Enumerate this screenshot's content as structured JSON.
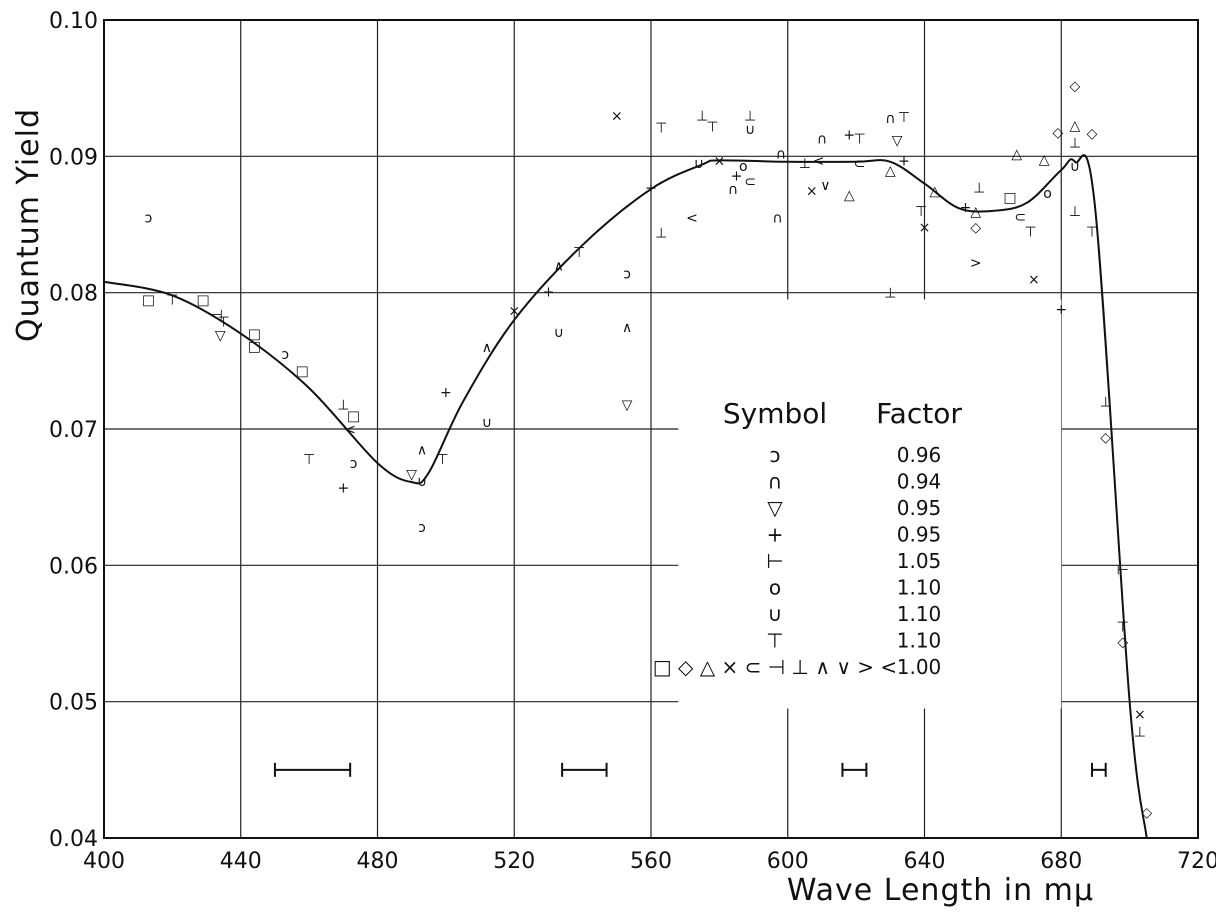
{
  "chart_data": {
    "type": "scatter",
    "xlabel": "Wave Length in mμ",
    "ylabel": "Quantum Yield",
    "xlim": [
      400,
      720
    ],
    "ylim": [
      0.04,
      0.1
    ],
    "xticks": [
      400,
      440,
      480,
      520,
      560,
      600,
      640,
      680,
      720
    ],
    "xtick_labels": [
      "400",
      "440",
      "480",
      "520",
      "560",
      "600",
      "640",
      "680",
      "720"
    ],
    "yticks": [
      0.04,
      0.05,
      0.06,
      0.07,
      0.08,
      0.09,
      0.1
    ],
    "ytick_labels": [
      "0.04",
      "0.05",
      "0.06",
      "0.07",
      "0.08",
      "0.09",
      "0.10"
    ],
    "grid": true,
    "legend": {
      "position": "center-right",
      "header_symbol": "Symbol",
      "header_factor": "Factor",
      "entries": [
        {
          "symbols": "ɔ",
          "factor": "0.96"
        },
        {
          "symbols": "∩",
          "factor": "0.94"
        },
        {
          "symbols": "▽",
          "factor": "0.95"
        },
        {
          "symbols": "+",
          "factor": "0.95"
        },
        {
          "symbols": "⊢",
          "factor": "1.05"
        },
        {
          "symbols": "o",
          "factor": "1.10"
        },
        {
          "symbols": "∪",
          "factor": "1.10"
        },
        {
          "symbols": "⊤",
          "factor": "1.10"
        },
        {
          "symbols": "□ ◇ △ × ⊂ ⊣ ⊥ ∧ ∨ > <",
          "factor": "1.00"
        }
      ]
    },
    "curve": {
      "x": [
        400,
        420,
        440,
        460,
        480,
        490,
        495,
        505,
        520,
        540,
        560,
        575,
        580,
        600,
        620,
        630,
        640,
        650,
        660,
        670,
        680,
        684,
        690,
        700,
        705
      ],
      "y": [
        0.0808,
        0.0798,
        0.077,
        0.073,
        0.0675,
        0.0661,
        0.0668,
        0.072,
        0.078,
        0.0835,
        0.0876,
        0.0894,
        0.0897,
        0.0896,
        0.0896,
        0.0896,
        0.088,
        0.0862,
        0.086,
        0.0866,
        0.089,
        0.0896,
        0.086,
        0.05,
        0.04
      ]
    },
    "points": [
      {
        "x": 413,
        "y": 0.0855,
        "s": "ɔ"
      },
      {
        "x": 413,
        "y": 0.0795,
        "s": "□"
      },
      {
        "x": 420,
        "y": 0.0795,
        "s": "⊤"
      },
      {
        "x": 429,
        "y": 0.0795,
        "s": "□"
      },
      {
        "x": 433,
        "y": 0.0784,
        "s": "⊣"
      },
      {
        "x": 435,
        "y": 0.0779,
        "s": "⊤"
      },
      {
        "x": 434,
        "y": 0.0769,
        "s": "▽"
      },
      {
        "x": 444,
        "y": 0.077,
        "s": "□"
      },
      {
        "x": 444,
        "y": 0.0761,
        "s": "□"
      },
      {
        "x": 453,
        "y": 0.0755,
        "s": "ɔ"
      },
      {
        "x": 458,
        "y": 0.0743,
        "s": "□"
      },
      {
        "x": 460,
        "y": 0.0678,
        "s": "⊤"
      },
      {
        "x": 470,
        "y": 0.0718,
        "s": "⊥"
      },
      {
        "x": 472,
        "y": 0.07,
        "s": "<"
      },
      {
        "x": 473,
        "y": 0.071,
        "s": "□"
      },
      {
        "x": 473,
        "y": 0.0675,
        "s": "ɔ"
      },
      {
        "x": 470,
        "y": 0.0657,
        "s": "+"
      },
      {
        "x": 490,
        "y": 0.0667,
        "s": "▽"
      },
      {
        "x": 493,
        "y": 0.0685,
        "s": "∧"
      },
      {
        "x": 493,
        "y": 0.0662,
        "s": "∪"
      },
      {
        "x": 493,
        "y": 0.0628,
        "s": "ɔ"
      },
      {
        "x": 499,
        "y": 0.0678,
        "s": "⊤"
      },
      {
        "x": 500,
        "y": 0.0727,
        "s": "+"
      },
      {
        "x": 512,
        "y": 0.0705,
        "s": "∪"
      },
      {
        "x": 512,
        "y": 0.076,
        "s": "∧"
      },
      {
        "x": 520,
        "y": 0.0787,
        "s": "×"
      },
      {
        "x": 530,
        "y": 0.0801,
        "s": "+"
      },
      {
        "x": 533,
        "y": 0.082,
        "s": "∧"
      },
      {
        "x": 533,
        "y": 0.0771,
        "s": "∪"
      },
      {
        "x": 539,
        "y": 0.083,
        "s": "⊤"
      },
      {
        "x": 550,
        "y": 0.093,
        "s": "×"
      },
      {
        "x": 553,
        "y": 0.0814,
        "s": "ɔ"
      },
      {
        "x": 553,
        "y": 0.0775,
        "s": "∧"
      },
      {
        "x": 553,
        "y": 0.0718,
        "s": "▽"
      },
      {
        "x": 560,
        "y": 0.0877,
        "s": "+"
      },
      {
        "x": 563,
        "y": 0.0921,
        "s": "⊤"
      },
      {
        "x": 563,
        "y": 0.0844,
        "s": "⊥"
      },
      {
        "x": 574,
        "y": 0.0895,
        "s": "∪"
      },
      {
        "x": 572,
        "y": 0.0855,
        "s": "<"
      },
      {
        "x": 575,
        "y": 0.093,
        "s": "⊥"
      },
      {
        "x": 578,
        "y": 0.0922,
        "s": "⊤"
      },
      {
        "x": 580,
        "y": 0.0897,
        "s": "×"
      },
      {
        "x": 584,
        "y": 0.0876,
        "s": "∩"
      },
      {
        "x": 589,
        "y": 0.093,
        "s": "⊥"
      },
      {
        "x": 589,
        "y": 0.092,
        "s": "∪"
      },
      {
        "x": 585,
        "y": 0.0886,
        "s": "+"
      },
      {
        "x": 587,
        "y": 0.0893,
        "s": "o"
      },
      {
        "x": 589,
        "y": 0.0882,
        "s": "⊂"
      },
      {
        "x": 598,
        "y": 0.0902,
        "s": "∩"
      },
      {
        "x": 597,
        "y": 0.0855,
        "s": "∩"
      },
      {
        "x": 605,
        "y": 0.0895,
        "s": "⊥"
      },
      {
        "x": 609,
        "y": 0.0897,
        "s": "<"
      },
      {
        "x": 610,
        "y": 0.0913,
        "s": "∩"
      },
      {
        "x": 607,
        "y": 0.0875,
        "s": "×"
      },
      {
        "x": 611,
        "y": 0.0879,
        "s": "∨"
      },
      {
        "x": 618,
        "y": 0.0916,
        "s": "+"
      },
      {
        "x": 621,
        "y": 0.0913,
        "s": "⊤"
      },
      {
        "x": 618,
        "y": 0.0872,
        "s": "△"
      },
      {
        "x": 621,
        "y": 0.0895,
        "s": "⊂"
      },
      {
        "x": 630,
        "y": 0.0928,
        "s": "∩"
      },
      {
        "x": 634,
        "y": 0.0929,
        "s": "⊤"
      },
      {
        "x": 632,
        "y": 0.0912,
        "s": "▽"
      },
      {
        "x": 630,
        "y": 0.089,
        "s": "△"
      },
      {
        "x": 634,
        "y": 0.0897,
        "s": "+"
      },
      {
        "x": 630,
        "y": 0.08,
        "s": "⊥"
      },
      {
        "x": 639,
        "y": 0.086,
        "s": "⊤"
      },
      {
        "x": 640,
        "y": 0.0848,
        "s": "×"
      },
      {
        "x": 643,
        "y": 0.0875,
        "s": "△"
      },
      {
        "x": 652,
        "y": 0.0863,
        "s": "+"
      },
      {
        "x": 655,
        "y": 0.086,
        "s": "△"
      },
      {
        "x": 655,
        "y": 0.0848,
        "s": "◇"
      },
      {
        "x": 655,
        "y": 0.0822,
        "s": ">"
      },
      {
        "x": 656,
        "y": 0.0877,
        "s": "⊥"
      },
      {
        "x": 667,
        "y": 0.0902,
        "s": "△"
      },
      {
        "x": 665,
        "y": 0.087,
        "s": "□"
      },
      {
        "x": 668,
        "y": 0.0856,
        "s": "⊂"
      },
      {
        "x": 671,
        "y": 0.0845,
        "s": "⊤"
      },
      {
        "x": 672,
        "y": 0.081,
        "s": "×"
      },
      {
        "x": 676,
        "y": 0.0873,
        "s": "o"
      },
      {
        "x": 675,
        "y": 0.0898,
        "s": "△"
      },
      {
        "x": 679,
        "y": 0.0918,
        "s": "◇"
      },
      {
        "x": 680,
        "y": 0.0788,
        "s": "+"
      },
      {
        "x": 684,
        "y": 0.0952,
        "s": "◇"
      },
      {
        "x": 684,
        "y": 0.0923,
        "s": "△"
      },
      {
        "x": 684,
        "y": 0.091,
        "s": "⊥"
      },
      {
        "x": 684,
        "y": 0.0893,
        "s": "∪"
      },
      {
        "x": 684,
        "y": 0.086,
        "s": "⊥"
      },
      {
        "x": 689,
        "y": 0.0917,
        "s": "◇"
      },
      {
        "x": 689,
        "y": 0.0845,
        "s": "⊤"
      },
      {
        "x": 693,
        "y": 0.072,
        "s": "⊥"
      },
      {
        "x": 693,
        "y": 0.0694,
        "s": "◇"
      },
      {
        "x": 698,
        "y": 0.0597,
        "s": "⊢"
      },
      {
        "x": 698,
        "y": 0.0555,
        "s": "⊤"
      },
      {
        "x": 698,
        "y": 0.0544,
        "s": "◇"
      },
      {
        "x": 703,
        "y": 0.0491,
        "s": "×"
      },
      {
        "x": 703,
        "y": 0.0478,
        "s": "⊥"
      },
      {
        "x": 705,
        "y": 0.0419,
        "s": "◇"
      }
    ],
    "error_bars": [
      {
        "x1": 450,
        "x2": 472,
        "y": 0.045
      },
      {
        "x1": 534,
        "x2": 547,
        "y": 0.045
      },
      {
        "x1": 616,
        "x2": 623,
        "y": 0.045
      },
      {
        "x1": 689,
        "x2": 693,
        "y": 0.045
      }
    ]
  }
}
